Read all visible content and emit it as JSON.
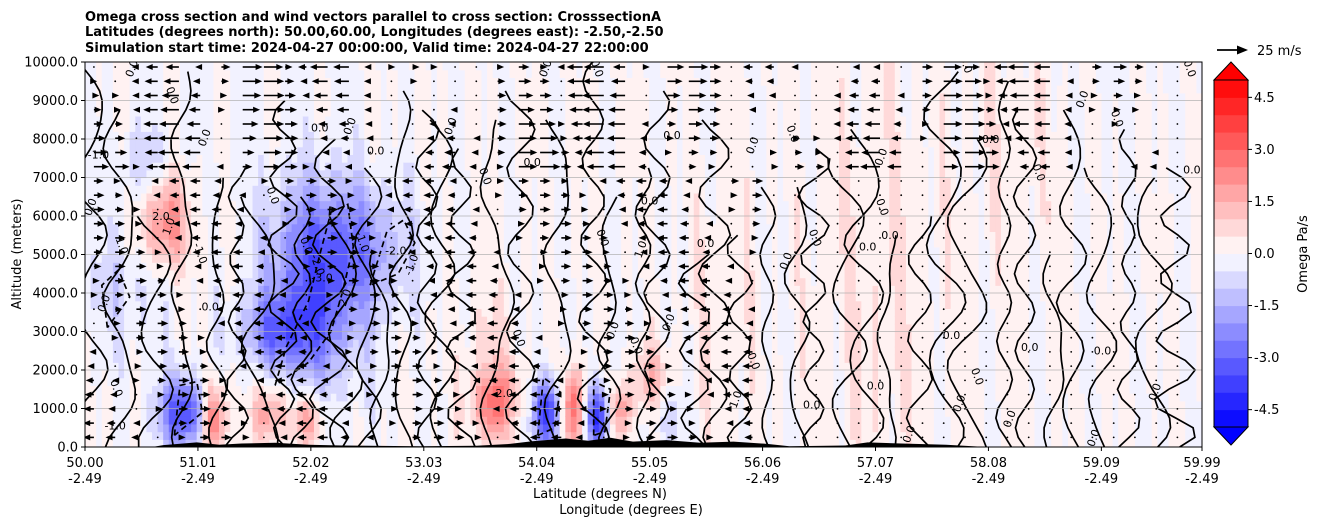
{
  "chart_data": {
    "type": "heatmap",
    "title_lines": [
      "Omega cross section and wind vectors parallel to cross section: CrosssectionA",
      "Latitudes (degrees north): 50.00,60.00, Longitudes (degrees east): -2.50,-2.50",
      "Simulation start time: 2024-04-27 00:00:00, Valid time: 2024-04-27 22:00:00"
    ],
    "ylabel": "Altitude (meters)",
    "xlabel_1": "Latitude (degrees N)",
    "xlabel_2": "Longitude (degrees E)",
    "ylim": [
      0,
      10000
    ],
    "y_ticks": [
      "0.0",
      "1000.0",
      "2000.0",
      "3000.0",
      "4000.0",
      "5000.0",
      "6000.0",
      "7000.0",
      "8000.0",
      "9000.0",
      "10000.0"
    ],
    "x_ticks": [
      {
        "lat": "50.00",
        "lon": "-2.49"
      },
      {
        "lat": "51.01",
        "lon": "-2.49"
      },
      {
        "lat": "52.02",
        "lon": "-2.49"
      },
      {
        "lat": "53.03",
        "lon": "-2.49"
      },
      {
        "lat": "54.04",
        "lon": "-2.49"
      },
      {
        "lat": "55.05",
        "lon": "-2.49"
      },
      {
        "lat": "56.06",
        "lon": "-2.49"
      },
      {
        "lat": "57.07",
        "lon": "-2.49"
      },
      {
        "lat": "58.08",
        "lon": "-2.49"
      },
      {
        "lat": "59.09",
        "lon": "-2.49"
      },
      {
        "lat": "59.99",
        "lon": "-2.49"
      }
    ],
    "xlim": [
      50.0,
      59.99
    ],
    "colorbar": {
      "label": "Omega Pa/s",
      "vmin": -5.0,
      "vmax": 5.0,
      "ticks": [
        "-4.5",
        "-3.0",
        "-1.5",
        "0.0",
        "1.5",
        "3.0",
        "4.5"
      ],
      "tick_values": [
        -4.5,
        -3.0,
        -1.5,
        0.0,
        1.5,
        3.0,
        4.5
      ],
      "levels": 20,
      "neg_color": "#0000ff",
      "pos_color": "#ff0000",
      "mid_color": "#ffffff"
    },
    "quiver_key": "25 m/s",
    "contour_labels": [
      {
        "text": "0.0",
        "lat": 50.45,
        "z": 9800
      },
      {
        "text": "0.0",
        "lat": 50.75,
        "z": 9100
      },
      {
        "text": "-1.0",
        "lat": 50.12,
        "z": 7500
      },
      {
        "text": "0.0",
        "lat": 50.08,
        "z": 6200
      },
      {
        "text": "1.0",
        "lat": 50.3,
        "z": 5200
      },
      {
        "text": "2.0",
        "lat": 50.68,
        "z": 5900
      },
      {
        "text": "1.0",
        "lat": 50.78,
        "z": 5700
      },
      {
        "text": "-1.0",
        "lat": 51.0,
        "z": 5000
      },
      {
        "text": "0.0",
        "lat": 51.12,
        "z": 3550
      },
      {
        "text": "0.0",
        "lat": 50.2,
        "z": 3700
      },
      {
        "text": "0.0",
        "lat": 50.25,
        "z": 1500
      },
      {
        "text": "-1.0",
        "lat": 50.27,
        "z": 450
      },
      {
        "text": "0.0",
        "lat": 51.1,
        "z": 8000
      },
      {
        "text": "0.0",
        "lat": 51.65,
        "z": 6500
      },
      {
        "text": "0.0",
        "lat": 52.1,
        "z": 8200
      },
      {
        "text": "0.0",
        "lat": 52.4,
        "z": 8300
      },
      {
        "text": "-2.0",
        "lat": 52.05,
        "z": 4700
      },
      {
        "text": "-3.0",
        "lat": 52.12,
        "z": 4300
      },
      {
        "text": "-2.0",
        "lat": 52.35,
        "z": 3800
      },
      {
        "text": "-1.0",
        "lat": 52.45,
        "z": 5300
      },
      {
        "text": "-2.0",
        "lat": 52.78,
        "z": 5000
      },
      {
        "text": "-1.0",
        "lat": 52.95,
        "z": 4700
      },
      {
        "text": "0.0",
        "lat": 51.95,
        "z": 5200
      },
      {
        "text": "0.0",
        "lat": 52.6,
        "z": 7600
      },
      {
        "text": "0.0",
        "lat": 53.3,
        "z": 8300
      },
      {
        "text": "0.0",
        "lat": 53.55,
        "z": 7000
      },
      {
        "text": "0.0",
        "lat": 54.0,
        "z": 7300
      },
      {
        "text": "0.0",
        "lat": 54.15,
        "z": 9800
      },
      {
        "text": "0.0",
        "lat": 54.55,
        "z": 9800
      },
      {
        "text": "0.0",
        "lat": 55.05,
        "z": 6300
      },
      {
        "text": "1.0",
        "lat": 55.0,
        "z": 5100
      },
      {
        "text": "0.0",
        "lat": 54.6,
        "z": 5400
      },
      {
        "text": "0.0",
        "lat": 55.25,
        "z": 8000
      },
      {
        "text": "0.0",
        "lat": 54.75,
        "z": 3000
      },
      {
        "text": "0.0",
        "lat": 54.9,
        "z": 2600
      },
      {
        "text": "0.0",
        "lat": 55.55,
        "z": 5200
      },
      {
        "text": "0.0",
        "lat": 55.25,
        "z": 3200
      },
      {
        "text": "0.0",
        "lat": 53.85,
        "z": 2800
      },
      {
        "text": "2.0",
        "lat": 53.75,
        "z": 1300
      },
      {
        "text": "1.0",
        "lat": 55.85,
        "z": 1200
      },
      {
        "text": "0.0",
        "lat": 55.95,
        "z": 2200
      },
      {
        "text": "0.0",
        "lat": 56.5,
        "z": 1000
      },
      {
        "text": "0.0",
        "lat": 56.3,
        "z": 4800
      },
      {
        "text": "0.0",
        "lat": 56.5,
        "z": 5400
      },
      {
        "text": "0.0",
        "lat": 57.0,
        "z": 5100
      },
      {
        "text": "0.0",
        "lat": 56.0,
        "z": 7800
      },
      {
        "text": "0.0",
        "lat": 56.3,
        "z": 8100
      },
      {
        "text": "0.0",
        "lat": 57.07,
        "z": 1500
      },
      {
        "text": "0.0",
        "lat": 57.15,
        "z": 7500
      },
      {
        "text": "0.0",
        "lat": 57.1,
        "z": 6200
      },
      {
        "text": "0.0",
        "lat": 57.2,
        "z": 5400
      },
      {
        "text": "0.0",
        "lat": 57.4,
        "z": 300
      },
      {
        "text": "0.0",
        "lat": 57.85,
        "z": 9900
      },
      {
        "text": "0.0",
        "lat": 57.75,
        "z": 2800
      },
      {
        "text": "0.0",
        "lat": 57.85,
        "z": 1100
      },
      {
        "text": "0.0",
        "lat": 57.95,
        "z": 1800
      },
      {
        "text": "0.0",
        "lat": 58.1,
        "z": 7900
      },
      {
        "text": "0.0",
        "lat": 58.3,
        "z": 700
      },
      {
        "text": "0.0",
        "lat": 58.5,
        "z": 7100
      },
      {
        "text": "0.0",
        "lat": 58.45,
        "z": 2500
      },
      {
        "text": "0.0",
        "lat": 58.95,
        "z": 9000
      },
      {
        "text": "0.0",
        "lat": 59.2,
        "z": 8500
      },
      {
        "text": "0.0",
        "lat": 59.1,
        "z": 2400
      },
      {
        "text": "0.0",
        "lat": 59.6,
        "z": 1400
      },
      {
        "text": "0.0",
        "lat": 59.85,
        "z": 9800
      },
      {
        "text": "0.0",
        "lat": 59.9,
        "z": 7100
      },
      {
        "text": "0.0",
        "lat": 59.05,
        "z": 200
      }
    ]
  }
}
